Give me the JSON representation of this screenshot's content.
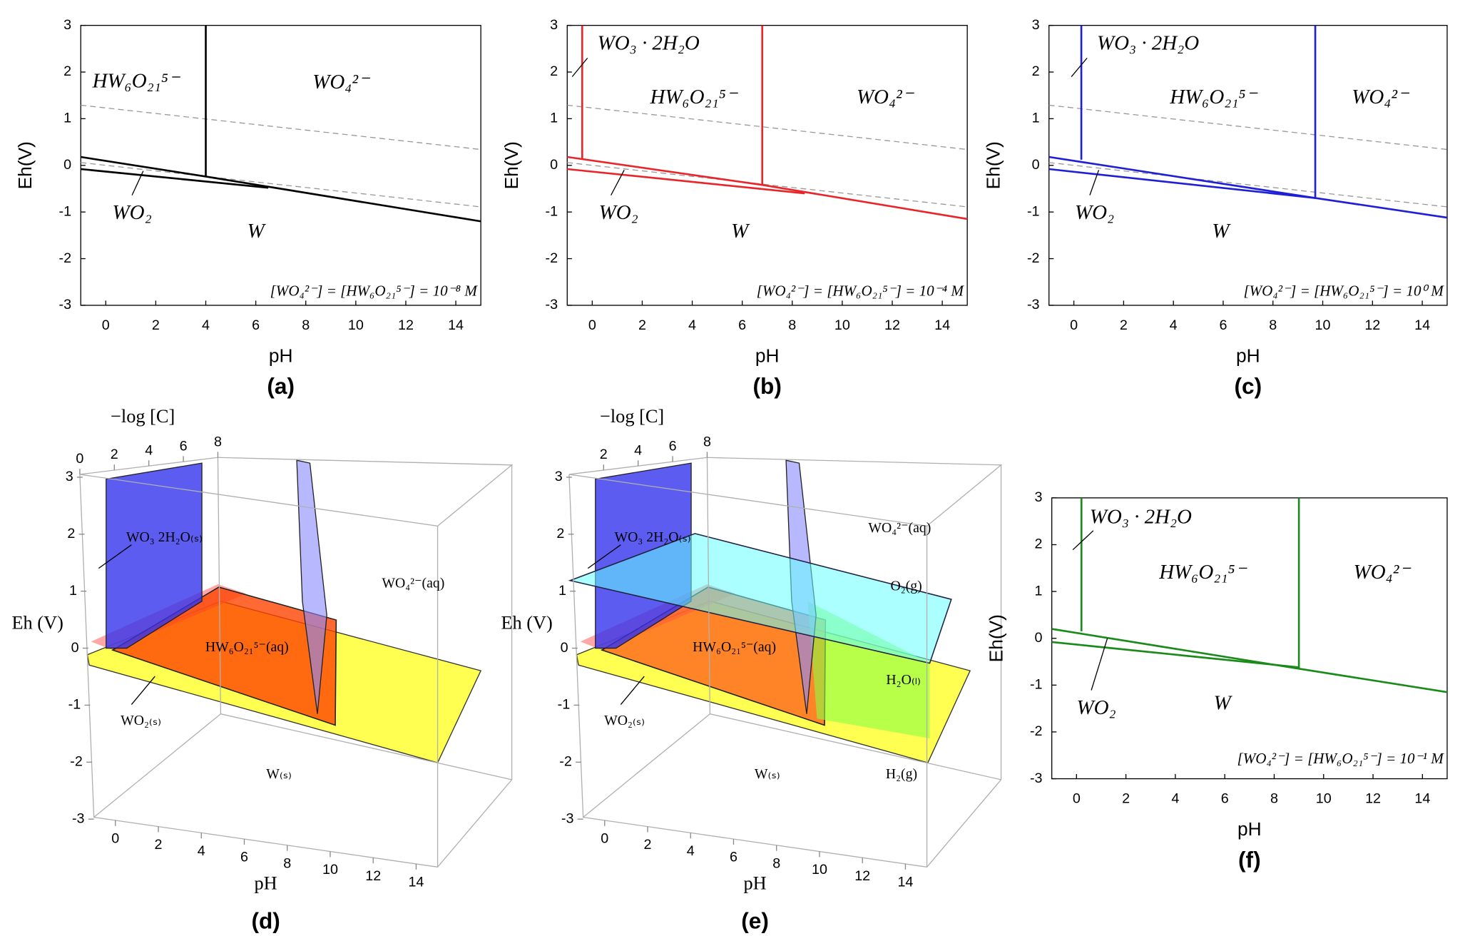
{
  "chart_data": [
    {
      "type": "line",
      "label": "(a)",
      "xlabel": "pH",
      "ylabel": "Eh(V)",
      "xlim": [
        -1,
        15
      ],
      "ylim": [
        -3,
        3
      ],
      "xticks": [
        0,
        2,
        4,
        6,
        8,
        10,
        12,
        14
      ],
      "yticks": [
        -3,
        -2,
        -1,
        0,
        1,
        2,
        3
      ],
      "color": "#000000",
      "dashed_color": "#999999",
      "lines": [
        {
          "x": [
            -1,
            4,
            15
          ],
          "y": [
            0.18,
            -0.24,
            -1.2
          ]
        },
        {
          "x": [
            -1,
            6.5
          ],
          "y": [
            -0.08,
            -0.48
          ]
        },
        {
          "x": [
            4,
            4
          ],
          "y": [
            -0.24,
            3
          ]
        }
      ],
      "dashed_lines": [
        {
          "x": [
            -1,
            15
          ],
          "y": [
            1.29,
            0.34
          ]
        },
        {
          "x": [
            -1,
            15
          ],
          "y": [
            0.06,
            -0.89
          ]
        }
      ],
      "annotations": [
        "HW₆O₂₁⁵⁻",
        "WO₄²⁻",
        "WO₂",
        "W",
        "[WO₄²⁻] = [HW₆O₂₁⁵⁻] = 10⁻⁸ M"
      ]
    },
    {
      "type": "line",
      "label": "(b)",
      "xlabel": "pH",
      "ylabel": "Eh(V)",
      "xlim": [
        -1,
        15
      ],
      "ylim": [
        -3,
        3
      ],
      "xticks": [
        0,
        2,
        4,
        6,
        8,
        10,
        12,
        14
      ],
      "yticks": [
        -3,
        -2,
        -1,
        0,
        1,
        2,
        3
      ],
      "color": "#e8262a",
      "dashed_color": "#999999",
      "lines": [
        {
          "x": [
            -1,
            6.8,
            15
          ],
          "y": [
            0.18,
            -0.42,
            -1.15
          ]
        },
        {
          "x": [
            -1,
            8.5
          ],
          "y": [
            -0.08,
            -0.6
          ]
        },
        {
          "x": [
            -0.4,
            -0.4
          ],
          "y": [
            0.15,
            3
          ]
        },
        {
          "x": [
            6.8,
            6.8
          ],
          "y": [
            -0.42,
            3
          ]
        }
      ],
      "dashed_lines": [
        {
          "x": [
            -1,
            15
          ],
          "y": [
            1.29,
            0.34
          ]
        },
        {
          "x": [
            -1,
            15
          ],
          "y": [
            0.06,
            -0.89
          ]
        }
      ],
      "annotations": [
        "WO₃ · 2H₂O",
        "HW₆O₂₁⁵⁻",
        "WO₄²⁻",
        "WO₂",
        "W",
        "[WO₄²⁻] = [HW₆O₂₁⁵⁻] = 10⁻⁴ M"
      ]
    },
    {
      "type": "line",
      "label": "(c)",
      "xlabel": "pH",
      "ylabel": "Eh(V)",
      "xlim": [
        -1,
        15
      ],
      "ylim": [
        -3,
        3
      ],
      "xticks": [
        0,
        2,
        4,
        6,
        8,
        10,
        12,
        14
      ],
      "yticks": [
        -3,
        -2,
        -1,
        0,
        1,
        2,
        3
      ],
      "color": "#1f1fd6",
      "dashed_color": "#999999",
      "lines": [
        {
          "x": [
            -1,
            9.7,
            15
          ],
          "y": [
            0.18,
            -0.7,
            -1.12
          ]
        },
        {
          "x": [
            -1,
            9.7
          ],
          "y": [
            -0.08,
            -0.7
          ]
        },
        {
          "x": [
            0.3,
            0.3
          ],
          "y": [
            0.12,
            3
          ]
        },
        {
          "x": [
            9.7,
            9.7
          ],
          "y": [
            -0.7,
            3
          ]
        }
      ],
      "dashed_lines": [
        {
          "x": [
            -1,
            15
          ],
          "y": [
            1.29,
            0.34
          ]
        },
        {
          "x": [
            -1,
            15
          ],
          "y": [
            0.06,
            -0.89
          ]
        }
      ],
      "annotations": [
        "WO₃ · 2H₂O",
        "HW₆O₂₁⁵⁻",
        "WO₄²⁻",
        "WO₂",
        "W",
        "[WO₄²⁻] = [HW₆O₂₁⁵⁻] = 10⁰ M"
      ]
    },
    {
      "type": "surface3d",
      "label": "(d)",
      "xlabel": "pH",
      "zlabel": "Eh (V)",
      "clabel": "−log [C]",
      "xlim": [
        -1,
        15
      ],
      "zlim": [
        -3,
        3
      ],
      "clim": [
        0,
        8
      ],
      "xticks": [
        0,
        2,
        4,
        6,
        8,
        10,
        12,
        14
      ],
      "zticks": [
        -3,
        -2,
        -1,
        0,
        1,
        2,
        3
      ],
      "cticks": [
        0,
        2,
        4,
        6,
        8
      ],
      "annotations": [
        "WO₃ 2H₂O₍ₛ₎",
        "WO₄²⁻(aq)",
        "HW₆O₂₁⁵⁻(aq)",
        "WO₂₍ₛ₎",
        "W₍ₛ₎"
      ]
    },
    {
      "type": "surface3d",
      "label": "(e)",
      "xlabel": "pH",
      "zlabel": "Eh (V)",
      "clabel": "−log [C]",
      "xlim": [
        -1,
        15
      ],
      "zlim": [
        -3,
        3
      ],
      "clim": [
        0,
        8
      ],
      "xticks": [
        0,
        2,
        4,
        6,
        8,
        10,
        12,
        14
      ],
      "zticks": [
        -3,
        -2,
        -1,
        0,
        1,
        2,
        3
      ],
      "cticks": [
        2,
        4,
        6,
        8
      ],
      "annotations": [
        "WO₃ 2H₂O₍ₛ₎",
        "WO₄²⁻(aq)",
        "HW₆O₂₁⁵⁻(aq)",
        "O₂(g)",
        "H₂O₍ₗ₎",
        "WO₂₍ₛ₎",
        "W₍ₛ₎",
        "H₂(g)"
      ]
    },
    {
      "type": "line",
      "label": "(f)",
      "xlabel": "pH",
      "ylabel": "Eh(V)",
      "xlim": [
        -1,
        15
      ],
      "ylim": [
        -3,
        3
      ],
      "xticks": [
        0,
        2,
        4,
        6,
        8,
        10,
        12,
        14
      ],
      "yticks": [
        -3,
        -2,
        -1,
        0,
        1,
        2,
        3
      ],
      "color": "#1a8a1a",
      "lines": [
        {
          "x": [
            -1,
            9,
            15
          ],
          "y": [
            0.2,
            -0.65,
            -1.15
          ]
        },
        {
          "x": [
            -1,
            9
          ],
          "y": [
            -0.08,
            -0.62
          ]
        },
        {
          "x": [
            0.2,
            0.2
          ],
          "y": [
            0.15,
            3
          ]
        },
        {
          "x": [
            9,
            9
          ],
          "y": [
            -0.65,
            3
          ]
        }
      ],
      "annotations": [
        "WO₃ · 2H₂O",
        "HW₆O₂₁⁵⁻",
        "WO₄²⁻",
        "WO₂",
        "W",
        "[WO₄²⁻] = [HW₆O₂₁⁵⁻] = 10⁻¹ M"
      ]
    }
  ]
}
